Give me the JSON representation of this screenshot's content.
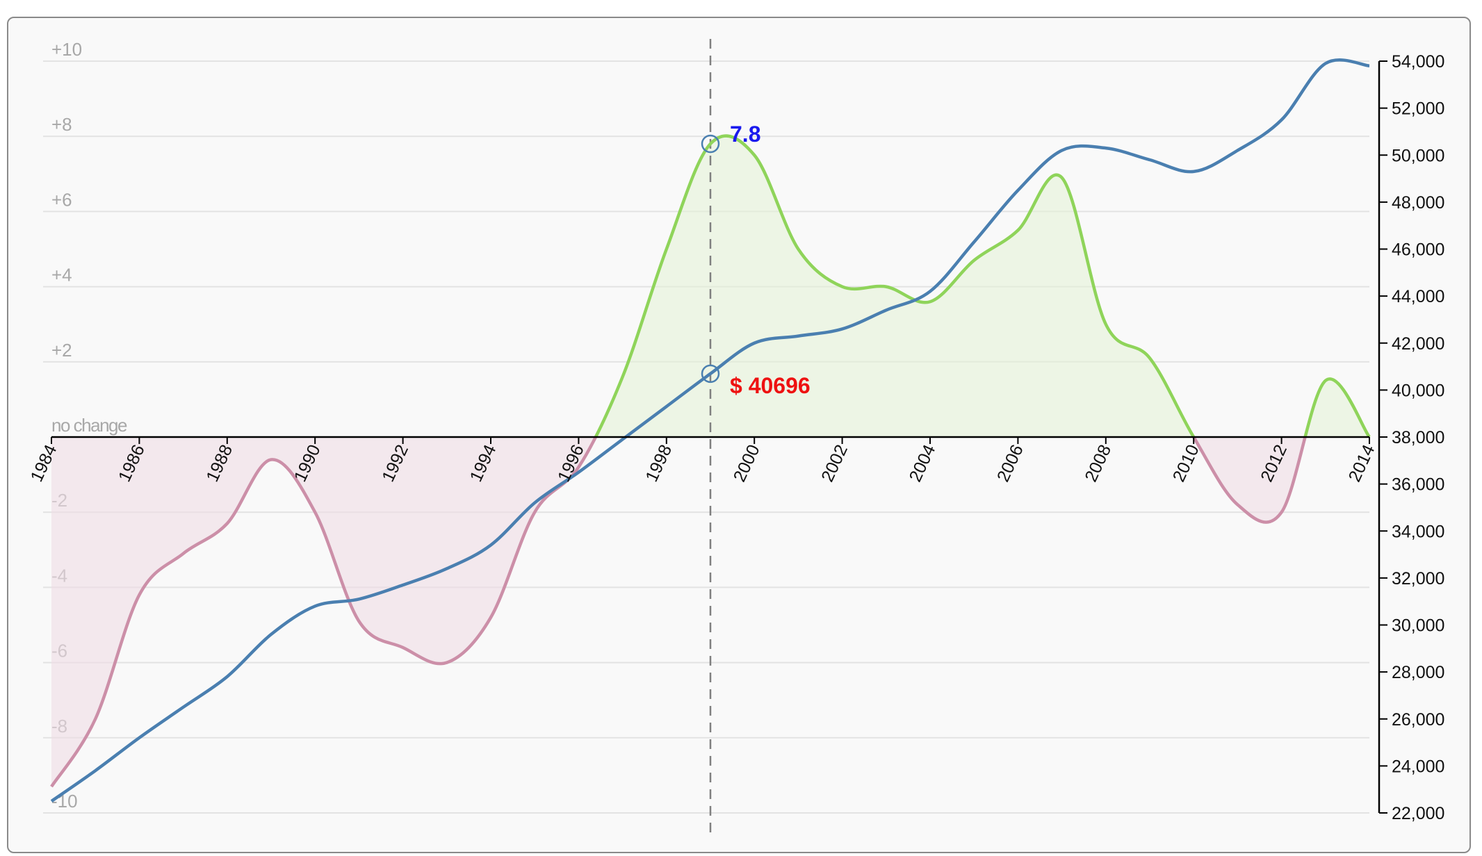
{
  "chart_data": {
    "type": "line",
    "x_ticks": [
      "1984",
      "1986",
      "1988",
      "1990",
      "1992",
      "1994",
      "1996",
      "1998",
      "2000",
      "2002",
      "2004",
      "2006",
      "2008",
      "2010",
      "2012",
      "2014"
    ],
    "xlim": [
      1984,
      2014
    ],
    "left_axis": {
      "ylim": [
        -10,
        10
      ],
      "ticks": [
        {
          "value": 10,
          "label": "+10"
        },
        {
          "value": 8,
          "label": "+8"
        },
        {
          "value": 6,
          "label": "+6"
        },
        {
          "value": 4,
          "label": "+4"
        },
        {
          "value": 2,
          "label": "+2"
        },
        {
          "value": 0,
          "label": "no change"
        },
        {
          "value": -2,
          "label": "-2"
        },
        {
          "value": -4,
          "label": "-4"
        },
        {
          "value": -6,
          "label": "-6"
        },
        {
          "value": -8,
          "label": "-8"
        },
        {
          "value": -10,
          "label": "-10"
        }
      ]
    },
    "right_axis": {
      "ylim": [
        22000,
        54000
      ],
      "ticks": [
        "22,000",
        "24,000",
        "26,000",
        "28,000",
        "30,000",
        "32,000",
        "34,000",
        "36,000",
        "38,000",
        "40,000",
        "42,000",
        "44,000",
        "46,000",
        "48,000",
        "50,000",
        "52,000",
        "54,000"
      ]
    },
    "grid": true,
    "series": [
      {
        "axis": "left",
        "color_positive": "#8fd45a",
        "color_negative": "#cc8fa8",
        "fill_positive": "#e4f3d6",
        "fill_negative": "#efdce4",
        "x": [
          1984,
          1985,
          1986,
          1987,
          1988,
          1989,
          1990,
          1991,
          1992,
          1993,
          1994,
          1995,
          1996,
          1997,
          1998,
          1999,
          2000,
          2001,
          2002,
          2003,
          2004,
          2005,
          2006,
          2007,
          2008,
          2009,
          2010,
          2011,
          2012,
          2013,
          2014
        ],
        "y": [
          -9.3,
          -7.5,
          -4.2,
          -3.1,
          -2.3,
          -0.6,
          -2.0,
          -4.9,
          -5.6,
          -6.0,
          -4.8,
          -2.0,
          -0.8,
          1.6,
          5.0,
          7.8,
          7.5,
          5.0,
          4.0,
          4.0,
          3.6,
          4.7,
          5.5,
          6.9,
          3.0,
          2.1,
          0.0,
          -1.8,
          -2.0,
          1.5,
          0.0
        ]
      },
      {
        "axis": "right",
        "color": "#4a7fb0",
        "x": [
          1984,
          1985,
          1986,
          1987,
          1988,
          1989,
          1990,
          1991,
          1992,
          1993,
          1994,
          1995,
          1996,
          1997,
          1998,
          1999,
          2000,
          2001,
          2002,
          2003,
          2004,
          2005,
          2006,
          2007,
          2008,
          2009,
          2010,
          2011,
          2012,
          2013,
          2014
        ],
        "y": [
          22500,
          23800,
          25200,
          26500,
          27800,
          29600,
          30800,
          31100,
          31700,
          32400,
          33400,
          35200,
          36500,
          37900,
          39300,
          40696,
          42000,
          42300,
          42600,
          43400,
          44200,
          46300,
          48500,
          50200,
          50300,
          49800,
          49300,
          50200,
          51500,
          53900,
          53800
        ]
      }
    ],
    "focus": {
      "x": 1999,
      "left_value": 7.8,
      "left_label": "7.8",
      "left_label_color": "#1a1aee",
      "right_value": 40696,
      "right_label": "$ 40696",
      "right_label_color": "#ee1111"
    }
  }
}
